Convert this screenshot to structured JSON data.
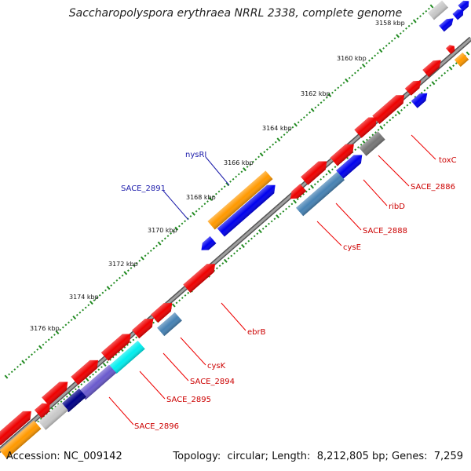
{
  "header": {
    "title": "Saccharopolyspora erythraea NRRL 2338, complete genome"
  },
  "footer": {
    "accession_label": "Accession:",
    "accession": "NC_009142",
    "topology_label": "Topology:",
    "topology": "circular",
    "length_label": "Length:",
    "length": "8,212,805 bp",
    "genes_label": "Genes:",
    "genes": "7,259"
  },
  "ticks": [
    "3158 kbp",
    "3160 kbp",
    "3162 kbp",
    "3164 kbp",
    "3166 kbp",
    "3168 kbp",
    "3170 kbp",
    "3172 kbp",
    "3174 kbp",
    "3176 kbp"
  ],
  "gene_labels": {
    "toxC": "toxC",
    "sace2886": "SACE_2886",
    "ribD": "ribD",
    "sace2888": "SACE_2888",
    "cysE": "cysE",
    "ebrB": "ebrB",
    "cysK": "cysK",
    "sace2894": "SACE_2894",
    "sace2895": "SACE_2895",
    "sace2896": "SACE_2896",
    "nysRI": "nysRI",
    "sace2891": "SACE_2891"
  },
  "colors": {
    "red": "#ee0000",
    "blue": "#0000ee",
    "orange": "#ff9900",
    "steelblue": "#4682b4",
    "gray": "#777777",
    "lightgray": "#c8c8c8",
    "cyan": "#00eeee",
    "slateblue": "#6a5acd",
    "navy": "#000088",
    "backbone": "#808080",
    "tick_green": "#228b22"
  }
}
